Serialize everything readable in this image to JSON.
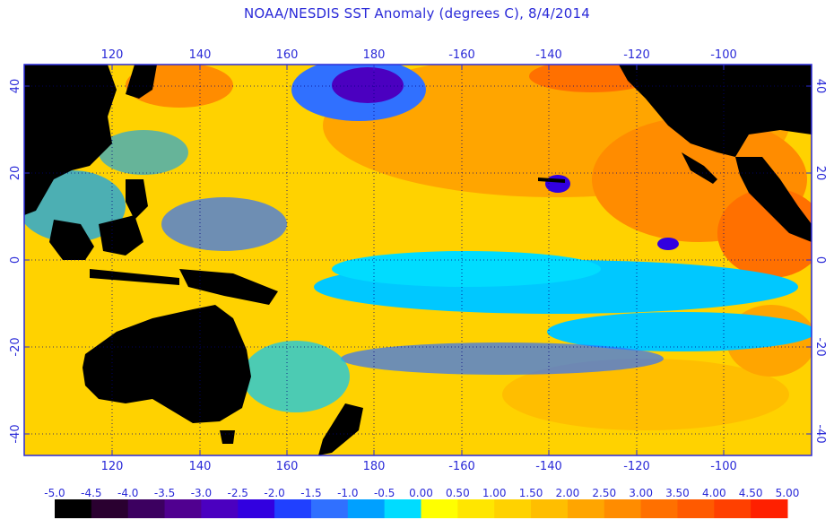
{
  "title": "NOAA/NESDIS SST Anomaly (degrees C), 8/4/2014",
  "map": {
    "lon_labels": [
      "120",
      "140",
      "160",
      "180",
      "-160",
      "-140",
      "-120",
      "-100"
    ],
    "lat_labels": [
      "40",
      "20",
      "0",
      "-20",
      "-40"
    ],
    "grid": true
  },
  "colorbar": {
    "labels": [
      "-5.0",
      "-4.5",
      "-4.0",
      "-3.5",
      "-3.0",
      "-2.5",
      "-2.0",
      "-1.5",
      "-1.0",
      "-0.5",
      "0.00",
      "0.50",
      "1.00",
      "1.50",
      "2.00",
      "2.50",
      "3.00",
      "3.50",
      "4.00",
      "4.50",
      "5.00"
    ],
    "colors": [
      "#000000",
      "#2a0030",
      "#3c0060",
      "#500090",
      "#4b00c0",
      "#3200e0",
      "#2040ff",
      "#3070ff",
      "#00a0ff",
      "#00dcff",
      "#ffff00",
      "#ffe600",
      "#ffd200",
      "#ffbe00",
      "#ffa500",
      "#ff8c00",
      "#ff7000",
      "#ff5a00",
      "#ff4000",
      "#ff2000"
    ]
  },
  "colors": {
    "text": "#2a2ad8",
    "frame": "#2a2ad8",
    "land": "#000000",
    "warm": "#ffc800",
    "cool": "#00c8ff"
  }
}
